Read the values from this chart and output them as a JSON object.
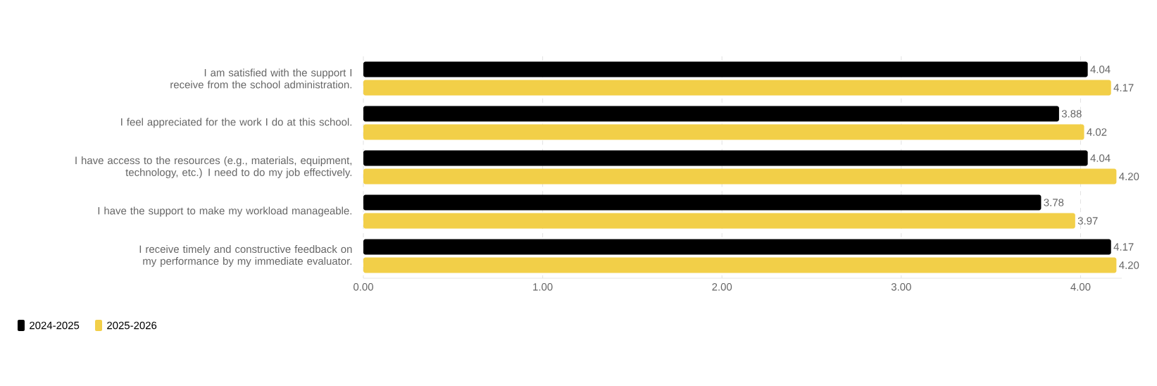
{
  "chart_data": {
    "type": "bar",
    "orientation": "horizontal",
    "categories": [
      "I am satisfied with the support I receive from the school administration.",
      "I feel appreciated for the work I do at this school.",
      "I have access to the resources (e.g., materials, equipment, technology, etc.) I need to do my job effectively.",
      "I have the support to make my workload manageable.",
      "I receive timely and constructive feedback on my performance by my immediate evaluator."
    ],
    "series": [
      {
        "name": "2024-2025",
        "color": "#000000",
        "values": [
          4.04,
          3.88,
          4.04,
          3.78,
          4.17
        ],
        "value_labels": [
          "4.04",
          "3.88",
          "4.04",
          "3.78",
          "4.17"
        ]
      },
      {
        "name": "2025-2026",
        "color": "#f2cf48",
        "values": [
          4.17,
          4.02,
          4.2,
          3.97,
          4.2
        ],
        "value_labels": [
          "4.17",
          "4.02",
          "4.20",
          "3.97",
          "4.20"
        ]
      }
    ],
    "xlim": [
      0,
      4.23
    ],
    "xticks": [
      {
        "value": 0,
        "label": "0.00"
      },
      {
        "value": 1,
        "label": "1.00"
      },
      {
        "value": 2,
        "label": "2.00"
      },
      {
        "value": 3,
        "label": "3.00"
      },
      {
        "value": 4,
        "label": "4.00"
      }
    ],
    "grid": "x",
    "legend": "bottom left"
  }
}
